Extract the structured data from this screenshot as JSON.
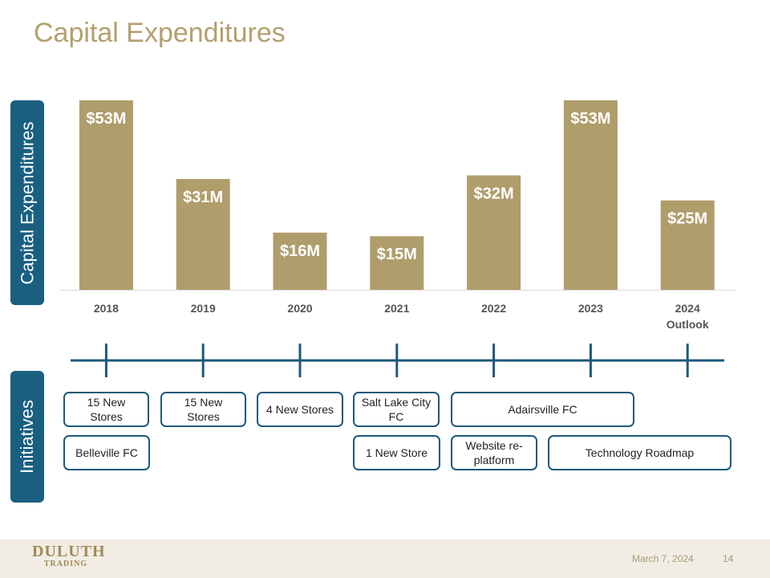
{
  "title": "Capital Expenditures",
  "chart_data": {
    "type": "bar",
    "y_label": "Capital Expenditures",
    "categories": [
      "2018",
      "2019",
      "2020",
      "2021",
      "2022",
      "2023",
      "2024 Outlook"
    ],
    "values": [
      53,
      31,
      16,
      15,
      32,
      53,
      25
    ],
    "value_labels": [
      "$53M",
      "$31M",
      "$16M",
      "$15M",
      "$32M",
      "$53M",
      "$25M"
    ],
    "color": "#af9d6c",
    "ylim": [
      0,
      53
    ]
  },
  "initiatives": {
    "label": "Initiatives",
    "row1": [
      "15 New Stores",
      "15 New Stores",
      "4 New Stores",
      "Salt Lake City FC",
      "Adairsville FC"
    ],
    "row2": [
      "Belleville FC",
      "1 New Store",
      "Website re-platform",
      "Technology Roadmap"
    ]
  },
  "footer": {
    "logo_top": "DULUTH",
    "logo_bottom": "TRADING",
    "date": "March 7, 2024",
    "page": "14"
  }
}
